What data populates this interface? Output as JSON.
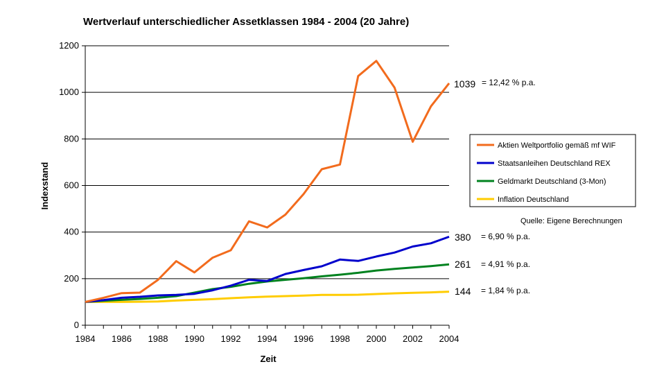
{
  "chart_data": {
    "type": "line",
    "title": "Wertverlauf unterschiedlicher Assetklassen 1984 - 2004 (20 Jahre)",
    "xlabel": "Zeit",
    "ylabel": "Indexstand",
    "xlim": [
      1984,
      2004
    ],
    "ylim": [
      0,
      1200
    ],
    "x_ticks": [
      "1984",
      "1986",
      "1988",
      "1990",
      "1992",
      "1994",
      "1996",
      "1998",
      "2000",
      "2002",
      "2004"
    ],
    "y_ticks": [
      "0",
      "200",
      "400",
      "600",
      "800",
      "1000",
      "1200"
    ],
    "x": [
      1984,
      1985,
      1986,
      1987,
      1988,
      1989,
      1990,
      1991,
      1992,
      1993,
      1994,
      1995,
      1996,
      1997,
      1998,
      1999,
      2000,
      2001,
      2002,
      2003,
      2004
    ],
    "legend_position": "right",
    "source_note": "Quelle: Eigene Berechnungen",
    "series": [
      {
        "name": "Aktien Weltportfolio gemäß mf WIF",
        "color": "#F26B1D",
        "values": [
          100,
          118,
          138,
          140,
          195,
          275,
          227,
          290,
          322,
          446,
          420,
          475,
          563,
          670,
          690,
          1070,
          1135,
          1020,
          788,
          940,
          1039
        ],
        "end_value": "1039",
        "rate": "= 12,42 %  p.a."
      },
      {
        "name": "Staatsanleihen Deutschland REX",
        "color": "#0000CC",
        "values": [
          100,
          108,
          118,
          122,
          128,
          130,
          135,
          150,
          170,
          195,
          190,
          220,
          237,
          253,
          282,
          276,
          295,
          312,
          338,
          352,
          380
        ],
        "end_value": "380",
        "rate": "= 6,90 % p.a."
      },
      {
        "name": "Geldmarkt Deutschland (3-Mon)",
        "color": "#00821F",
        "values": [
          100,
          105,
          109,
          113,
          118,
          125,
          140,
          155,
          165,
          178,
          188,
          195,
          202,
          210,
          217,
          225,
          235,
          242,
          248,
          254,
          261
        ],
        "end_value": "261",
        "rate": "= 4,91 % p.a."
      },
      {
        "name": "Inflation Deutschland",
        "color": "#FFCC00",
        "values": [
          100,
          100,
          100,
          101,
          102,
          106,
          109,
          112,
          116,
          120,
          123,
          125,
          127,
          130,
          130,
          131,
          134,
          137,
          139,
          141,
          144
        ],
        "end_value": "144",
        "rate": "= 1,84 % p.a."
      }
    ]
  }
}
